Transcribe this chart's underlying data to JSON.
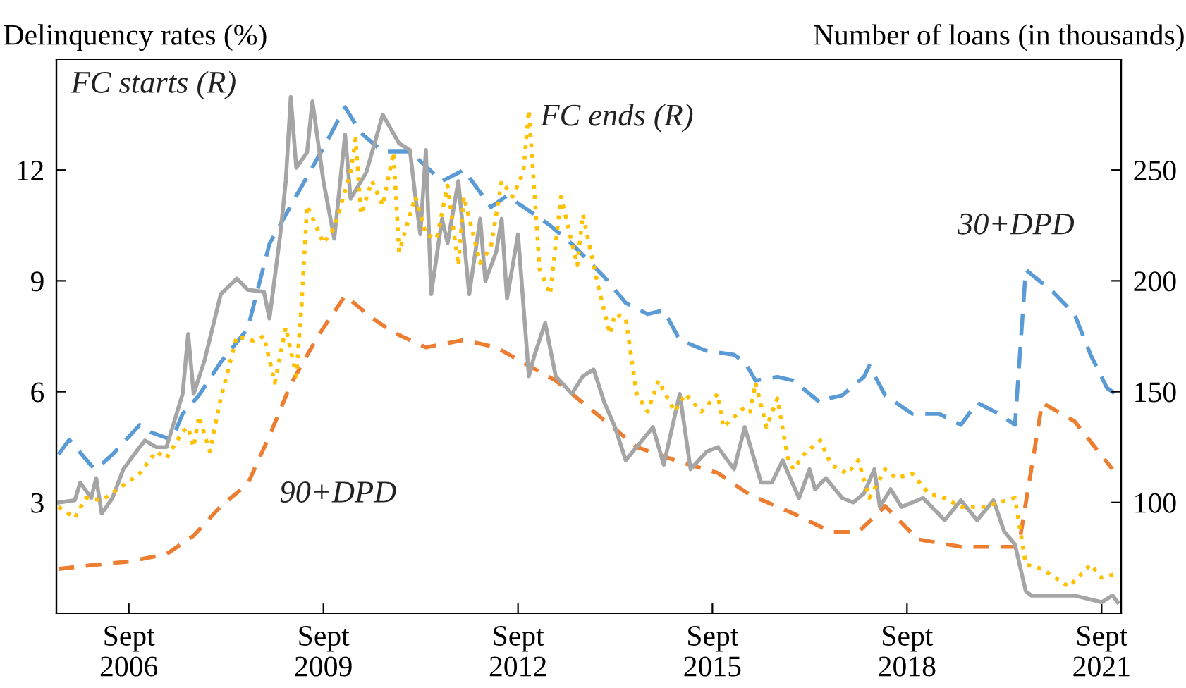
{
  "chart_data": {
    "type": "line",
    "ylabel": "Delinquency rates (%)",
    "y2label": "Number of loans (in thousands)",
    "xlim": [
      "2005-07-20",
      "2021-12-20"
    ],
    "xticks": [
      {
        "value": "2006-09",
        "label": "Sept\n2006"
      },
      {
        "value": "2009-09",
        "label": "Sept\n2009"
      },
      {
        "value": "2012-09",
        "label": "Sept\n2012"
      },
      {
        "value": "2015-09",
        "label": "Sept\n2015"
      },
      {
        "value": "2018-09",
        "label": "Sept\n2018"
      },
      {
        "value": "2021-09",
        "label": "Sept\n2021"
      }
    ],
    "ylim": [
      0,
      15
    ],
    "yticks": [
      3,
      6,
      9,
      12
    ],
    "y2lim": [
      50,
      300
    ],
    "y2ticks": [
      100,
      150,
      200,
      250
    ],
    "grid": false,
    "series": [
      {
        "name": "30+DPD",
        "color": "#5b9bd5",
        "line_style": "dashed",
        "x": [
          "2005-08",
          "2005-10",
          "2006-02",
          "2006-03",
          "2006-06",
          "2006-11",
          "2007-01",
          "2007-05",
          "2007-07",
          "2007-10",
          "2008-02",
          "2008-07",
          "2008-11",
          "2009-04",
          "2009-09",
          "2010-01",
          "2010-04",
          "2010-08",
          "2011-01",
          "2011-04",
          "2011-07",
          "2011-11",
          "2012-04",
          "2012-07",
          "2012-11",
          "2013-03",
          "2013-07",
          "2014-01",
          "2014-05",
          "2014-09",
          "2014-12",
          "2015-03",
          "2015-08",
          "2016-01",
          "2016-03",
          "2016-05",
          "2016-09",
          "2016-12",
          "2017-05",
          "2017-06",
          "2017-09",
          "2018-01",
          "2018-02",
          "2018-05",
          "2018-10",
          "2019-03",
          "2019-07",
          "2019-10",
          "2020-02",
          "2020-05",
          "2020-07",
          "2020-12",
          "2021-04",
          "2021-07",
          "2021-10",
          "2021-12"
        ],
        "values": [
          4.3,
          4.7,
          4.0,
          3.9,
          4.3,
          5.1,
          4.9,
          4.7,
          5.4,
          5.9,
          6.8,
          7.7,
          10.0,
          11.3,
          12.6,
          13.7,
          13.0,
          12.5,
          12.5,
          12.1,
          11.7,
          12.0,
          11.0,
          11.3,
          10.9,
          10.5,
          10.0,
          9.1,
          8.4,
          8.1,
          8.2,
          7.4,
          7.1,
          7.0,
          6.8,
          6.3,
          6.4,
          6.3,
          5.7,
          5.8,
          5.9,
          6.4,
          6.7,
          5.9,
          5.4,
          5.4,
          5.1,
          5.7,
          5.4,
          5.1,
          9.3,
          8.7,
          8.1,
          7.0,
          6.1,
          5.9
        ]
      },
      {
        "name": "90+DPD",
        "color": "#ed7d31",
        "line_style": "dashed",
        "x": [
          "2005-08",
          "2006-02",
          "2006-09",
          "2007-04",
          "2007-09",
          "2008-02",
          "2008-07",
          "2008-11",
          "2009-03",
          "2009-08",
          "2010-01",
          "2010-06",
          "2010-10",
          "2011-04",
          "2011-11",
          "2012-05",
          "2012-11",
          "2013-04",
          "2013-09",
          "2014-02",
          "2014-07",
          "2015-03",
          "2015-10",
          "2016-04",
          "2016-12",
          "2017-07",
          "2017-12",
          "2018-05",
          "2018-11",
          "2019-07",
          "2020-04",
          "2020-05",
          "2020-06",
          "2020-10",
          "2021-04",
          "2021-11"
        ],
        "values": [
          1.2,
          1.3,
          1.4,
          1.6,
          2.1,
          2.9,
          3.5,
          4.8,
          6.2,
          7.5,
          8.6,
          8.0,
          7.6,
          7.2,
          7.4,
          7.2,
          6.7,
          6.3,
          5.7,
          5.1,
          4.5,
          4.1,
          3.8,
          3.2,
          2.7,
          2.2,
          2.2,
          2.9,
          2.0,
          1.8,
          1.8,
          1.8,
          2.1,
          5.7,
          5.2,
          3.9
        ]
      },
      {
        "name": "FC starts (R)",
        "axis": "y2",
        "color": "#a5a5a5",
        "line_style": "solid",
        "x": [
          "2005-08",
          "2005-11",
          "2005-12",
          "2006-02",
          "2006-03",
          "2006-04",
          "2006-06",
          "2006-08",
          "2006-11",
          "2006-12",
          "2007-02",
          "2007-04",
          "2007-07",
          "2007-08",
          "2007-09",
          "2007-11",
          "2008-02",
          "2008-05",
          "2008-07",
          "2008-10",
          "2008-11",
          "2009-01",
          "2009-02",
          "2009-03",
          "2009-04",
          "2009-06",
          "2009-07",
          "2009-09",
          "2009-11",
          "2010-01",
          "2010-02",
          "2010-05",
          "2010-08",
          "2010-11",
          "2011-01",
          "2011-02",
          "2011-03",
          "2011-04",
          "2011-05",
          "2011-07",
          "2011-08",
          "2011-10",
          "2011-12",
          "2012-02",
          "2012-03",
          "2012-05",
          "2012-06",
          "2012-07",
          "2012-09",
          "2012-11",
          "2012-12",
          "2013-02",
          "2013-04",
          "2013-07",
          "2013-09",
          "2013-11",
          "2014-01",
          "2014-03",
          "2014-05",
          "2014-08",
          "2014-10",
          "2014-12",
          "2015-03",
          "2015-05",
          "2015-08",
          "2015-10",
          "2016-01",
          "2016-03",
          "2016-06",
          "2016-08",
          "2016-10",
          "2016-11",
          "2017-01",
          "2017-03",
          "2017-04",
          "2017-06",
          "2017-09",
          "2017-11",
          "2018-01",
          "2018-03",
          "2018-04",
          "2018-06",
          "2018-08",
          "2018-12",
          "2019-04",
          "2019-07",
          "2019-10",
          "2020-01",
          "2020-03",
          "2020-05",
          "2020-07",
          "2020-08",
          "2020-12",
          "2021-04",
          "2021-09",
          "2021-11",
          "2021-12"
        ],
        "values": [
          100,
          101,
          109,
          102,
          111,
          95,
          102,
          115,
          125,
          128,
          125,
          125,
          149,
          176,
          149,
          164,
          194,
          201,
          196,
          195,
          183,
          221,
          245,
          283,
          251,
          258,
          281,
          245,
          219,
          266,
          237,
          249,
          275,
          262,
          259,
          238,
          221,
          259,
          194,
          228,
          217,
          245,
          194,
          228,
          200,
          213,
          228,
          192,
          221,
          157,
          166,
          181,
          157,
          149,
          157,
          160,
          145,
          134,
          119,
          128,
          134,
          117,
          149,
          115,
          123,
          125,
          115,
          134,
          109,
          109,
          119,
          113,
          102,
          115,
          106,
          111,
          102,
          100,
          104,
          115,
          98,
          106,
          98,
          102,
          92,
          101,
          92,
          101,
          87,
          81,
          60,
          58,
          58,
          58,
          55,
          58,
          55
        ]
      },
      {
        "name": "FC ends (R)",
        "axis": "y2",
        "color": "#ffc000",
        "line_style": "dotted",
        "x": [
          "2005-08",
          "2005-11",
          "2006-01",
          "2006-04",
          "2006-07",
          "2006-11",
          "2007-02",
          "2007-04",
          "2007-07",
          "2007-08",
          "2007-09",
          "2007-10",
          "2007-12",
          "2008-02",
          "2008-05",
          "2008-08",
          "2008-10",
          "2008-12",
          "2009-02",
          "2009-04",
          "2009-05",
          "2009-06",
          "2009-09",
          "2009-11",
          "2010-02",
          "2010-03",
          "2010-04",
          "2010-06",
          "2010-08",
          "2010-10",
          "2010-11",
          "2011-02",
          "2011-04",
          "2011-06",
          "2011-08",
          "2011-10",
          "2011-11",
          "2012-02",
          "2012-04",
          "2012-06",
          "2012-08",
          "2012-10",
          "2012-11",
          "2013-01",
          "2013-03",
          "2013-05",
          "2013-08",
          "2013-09",
          "2013-12",
          "2014-02",
          "2014-03",
          "2014-05",
          "2014-07",
          "2014-09",
          "2014-11",
          "2015-02",
          "2015-04",
          "2015-07",
          "2015-10",
          "2015-11",
          "2016-03",
          "2016-04",
          "2016-05",
          "2016-07",
          "2016-09",
          "2016-11",
          "2016-12",
          "2017-02",
          "2017-05",
          "2017-07",
          "2017-10",
          "2017-12",
          "2018-02",
          "2018-05",
          "2018-07",
          "2018-10",
          "2019-01",
          "2019-04",
          "2019-07",
          "2019-11",
          "2020-02",
          "2020-05",
          "2020-07",
          "2020-10",
          "2021-03",
          "2021-07",
          "2021-09",
          "2021-12"
        ],
        "values": [
          98,
          93,
          102,
          101,
          106,
          113,
          123,
          120,
          132,
          134,
          125,
          139,
          123,
          147,
          175,
          173,
          175,
          154,
          179,
          157,
          189,
          234,
          217,
          224,
          249,
          264,
          230,
          245,
          234,
          258,
          213,
          238,
          221,
          219,
          243,
          207,
          238,
          208,
          215,
          245,
          238,
          249,
          277,
          205,
          194,
          238,
          207,
          230,
          196,
          176,
          185,
          183,
          149,
          141,
          155,
          141,
          149,
          141,
          149,
          134,
          143,
          141,
          154,
          134,
          147,
          119,
          115,
          122,
          128,
          117,
          113,
          119,
          102,
          115,
          111,
          113,
          104,
          102,
          98,
          98,
          100,
          102,
          72,
          70,
          62,
          72,
          66,
          68
        ]
      }
    ]
  }
}
